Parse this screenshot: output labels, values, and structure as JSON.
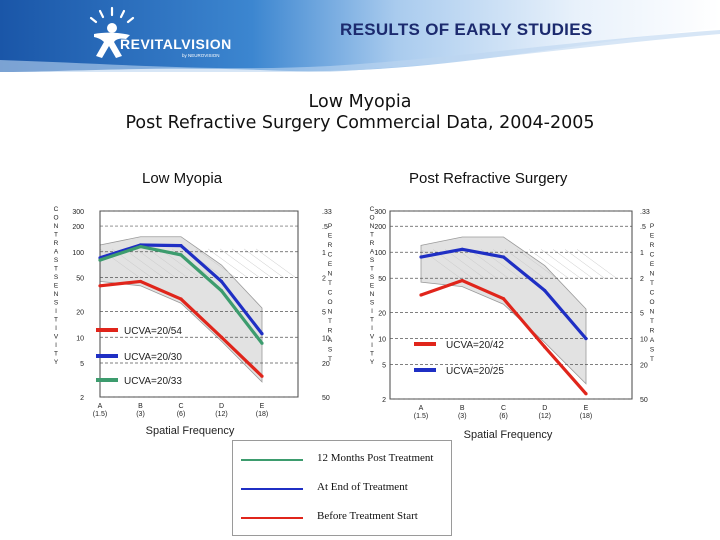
{
  "header": {
    "slide_title": "RESULTS OF EARLY STUDIES",
    "brand_name": "REVITALVISION",
    "brand_sub": "by NEUROVISION"
  },
  "main_title_line1": "Low Myopia",
  "main_title_line2": "Post Refractive Surgery Commercial Data, 2004-2005",
  "colors": {
    "green": "#3d9c6e",
    "blue": "#1f2fc4",
    "red": "#e0251b",
    "band": "#dcdcdc",
    "header_blue": "#1b4f9c"
  },
  "legend": {
    "items": [
      {
        "label": "12 Months Post Treatment",
        "color": "#3d9c6e"
      },
      {
        "label": "At End of Treatment",
        "color": "#1f2fc4"
      },
      {
        "label": "Before Treatment Start",
        "color": "#e0251b"
      }
    ]
  },
  "chart_data": [
    {
      "type": "line",
      "title": "Low Myopia",
      "xlabel": "Spatial Frequency",
      "ylabel_left": "CONTRAST SENSITIVITY",
      "ylabel_right": "PERCENT CONTRAST",
      "x_ticks": [
        "A\n(1.5)",
        "B\n(3)",
        "C\n(6)",
        "D\n(12)",
        "E\n(18)"
      ],
      "y_ticks_left": [
        300,
        200,
        100,
        50,
        20,
        10,
        5,
        2
      ],
      "y_ticks_right": [
        ".33",
        ".5",
        "1",
        "2",
        "5",
        "10",
        "20",
        "50"
      ],
      "ylim": [
        2,
        300
      ],
      "y_scale": "log",
      "x_categories": [
        "A",
        "B",
        "C",
        "D",
        "E"
      ],
      "series": [
        {
          "name": "UCVA=20/54",
          "color": "#e0251b",
          "values": [
            40,
            45,
            28,
            10,
            3.5
          ]
        },
        {
          "name": "UCVA=20/30",
          "color": "#1f2fc4",
          "values": [
            85,
            120,
            118,
            45,
            11
          ]
        },
        {
          "name": "UCVA=20/33",
          "color": "#3d9c6e",
          "values": [
            80,
            115,
            92,
            35,
            8.5
          ]
        }
      ]
    },
    {
      "type": "line",
      "title": "Post Refractive Surgery",
      "xlabel": "Spatial Frequency",
      "ylabel_left": "CONTRAST SENSITIVITY",
      "ylabel_right": "PERCENT CONTRAST",
      "x_ticks": [
        "A\n(1.5)",
        "B\n(3)",
        "C\n(6)",
        "D\n(12)",
        "E\n(18)"
      ],
      "y_ticks_left": [
        300,
        200,
        100,
        50,
        20,
        10,
        5,
        2
      ],
      "y_ticks_right": [
        ".33",
        ".5",
        "1",
        "2",
        "5",
        "10",
        "20",
        "50"
      ],
      "ylim": [
        2,
        300
      ],
      "y_scale": "log",
      "x_categories": [
        "A",
        "B",
        "C",
        "D",
        "E"
      ],
      "series": [
        {
          "name": "UCVA=20/42",
          "color": "#e0251b",
          "values": [
            32,
            47,
            29,
            8,
            2.3
          ]
        },
        {
          "name": "UCVA=20/25",
          "color": "#1f2fc4",
          "values": [
            88,
            108,
            88,
            36,
            10
          ]
        }
      ]
    }
  ]
}
